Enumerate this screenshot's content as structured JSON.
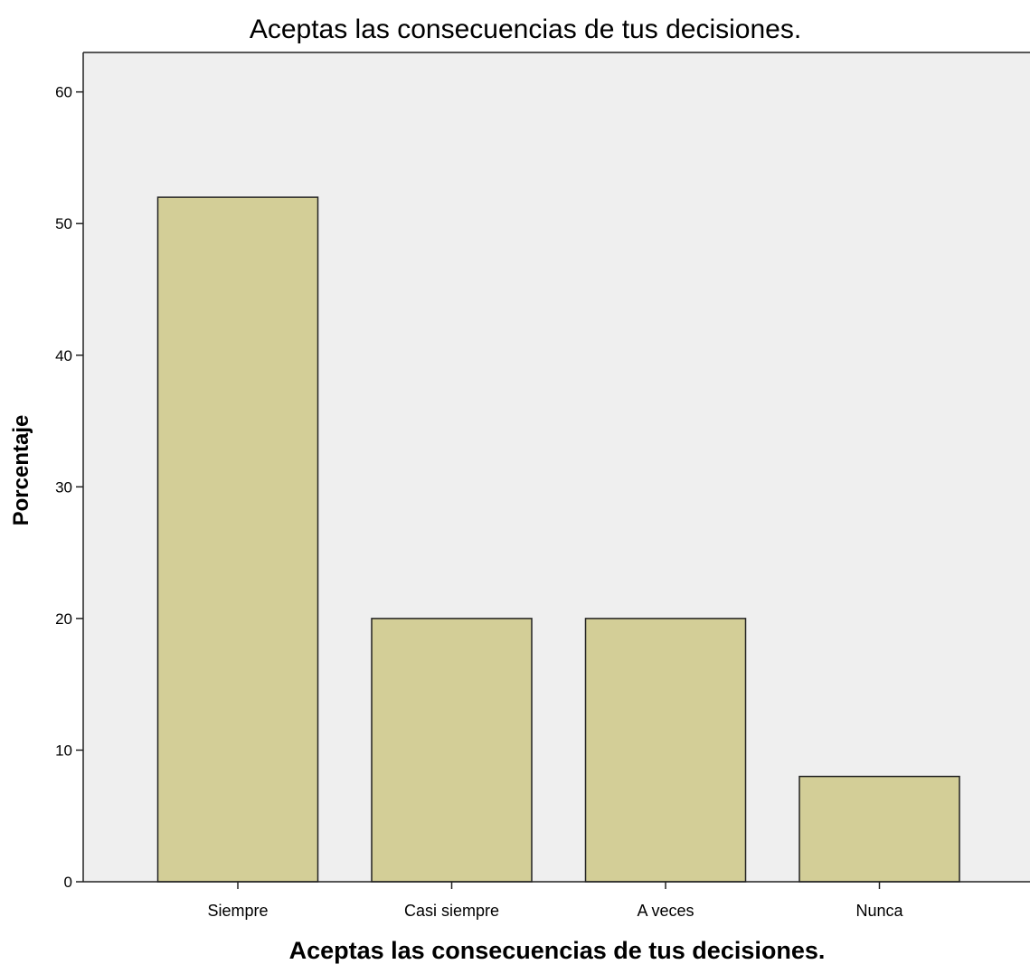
{
  "chart_data": {
    "type": "bar",
    "title": "Aceptas las consecuencias de tus decisiones.",
    "xlabel": "Aceptas las consecuencias de tus decisiones.",
    "ylabel": "Porcentaje",
    "categories": [
      "Siempre",
      "Casi siempre",
      "A veces",
      "Nunca"
    ],
    "values": [
      52,
      20,
      20,
      8
    ],
    "ylim": [
      0,
      63
    ],
    "yticks": [
      0,
      10,
      20,
      30,
      40,
      50,
      60
    ],
    "grid": false,
    "legend": "none",
    "colors": {
      "bar_fill": "#d3ce97",
      "bar_stroke": "#222222",
      "plot_background": "#efefef"
    }
  }
}
